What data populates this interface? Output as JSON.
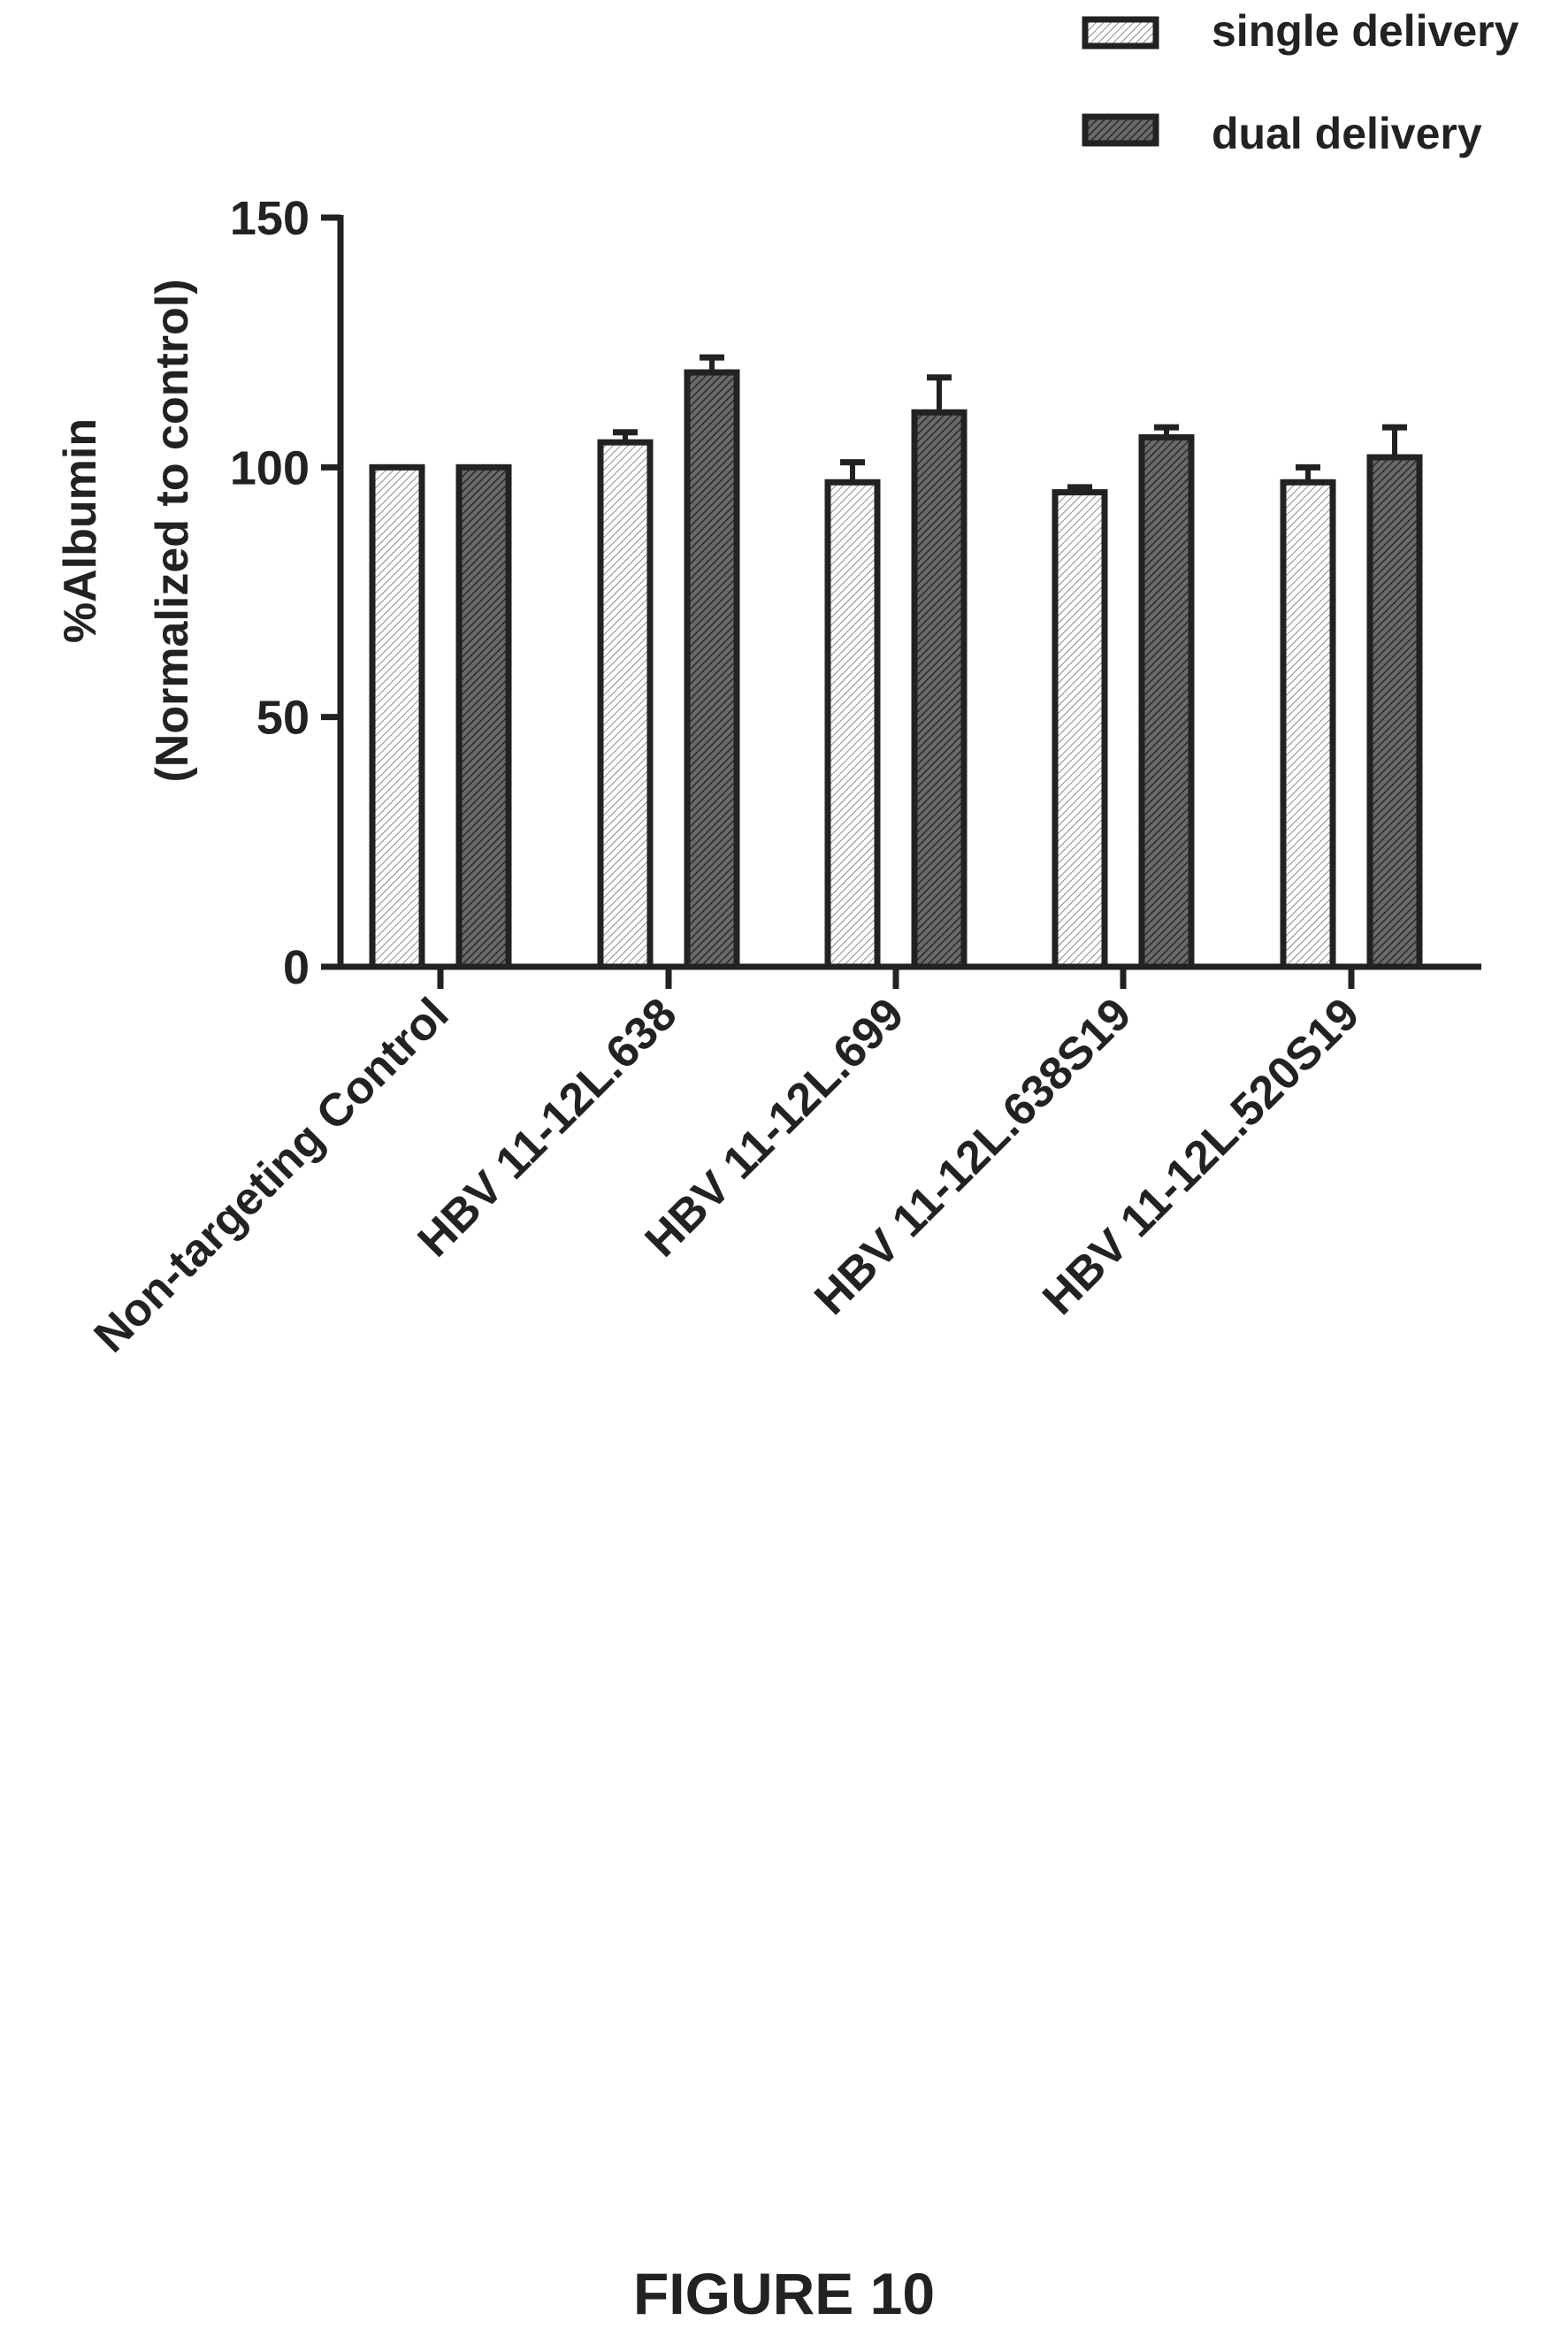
{
  "figure": {
    "caption": "FIGURE 10"
  },
  "chart_data": {
    "type": "bar",
    "ylabel": "%Albumin",
    "ylabel_line2": "(Normalized to control)",
    "xlabel": "",
    "ylim": [
      0,
      150
    ],
    "yticks": [
      "0",
      "50",
      "100",
      "150"
    ],
    "categories": [
      "Non-targeting Control",
      "HBV 11-12L.638",
      "HBV 11-12L.699",
      "HBV 11-12L.638S19",
      "HBV 11-12L.520S19"
    ],
    "series": [
      {
        "name": "single delivery",
        "values": [
          100,
          105,
          97,
          95,
          97
        ],
        "errors": [
          0,
          2,
          4,
          1,
          3
        ],
        "fill": "#ffffff"
      },
      {
        "name": "dual delivery",
        "values": [
          100,
          119,
          111,
          106,
          102
        ],
        "errors": [
          0,
          3,
          7,
          2,
          6
        ],
        "fill": "#555555"
      }
    ],
    "legend_position": "top-right",
    "grid": false
  }
}
